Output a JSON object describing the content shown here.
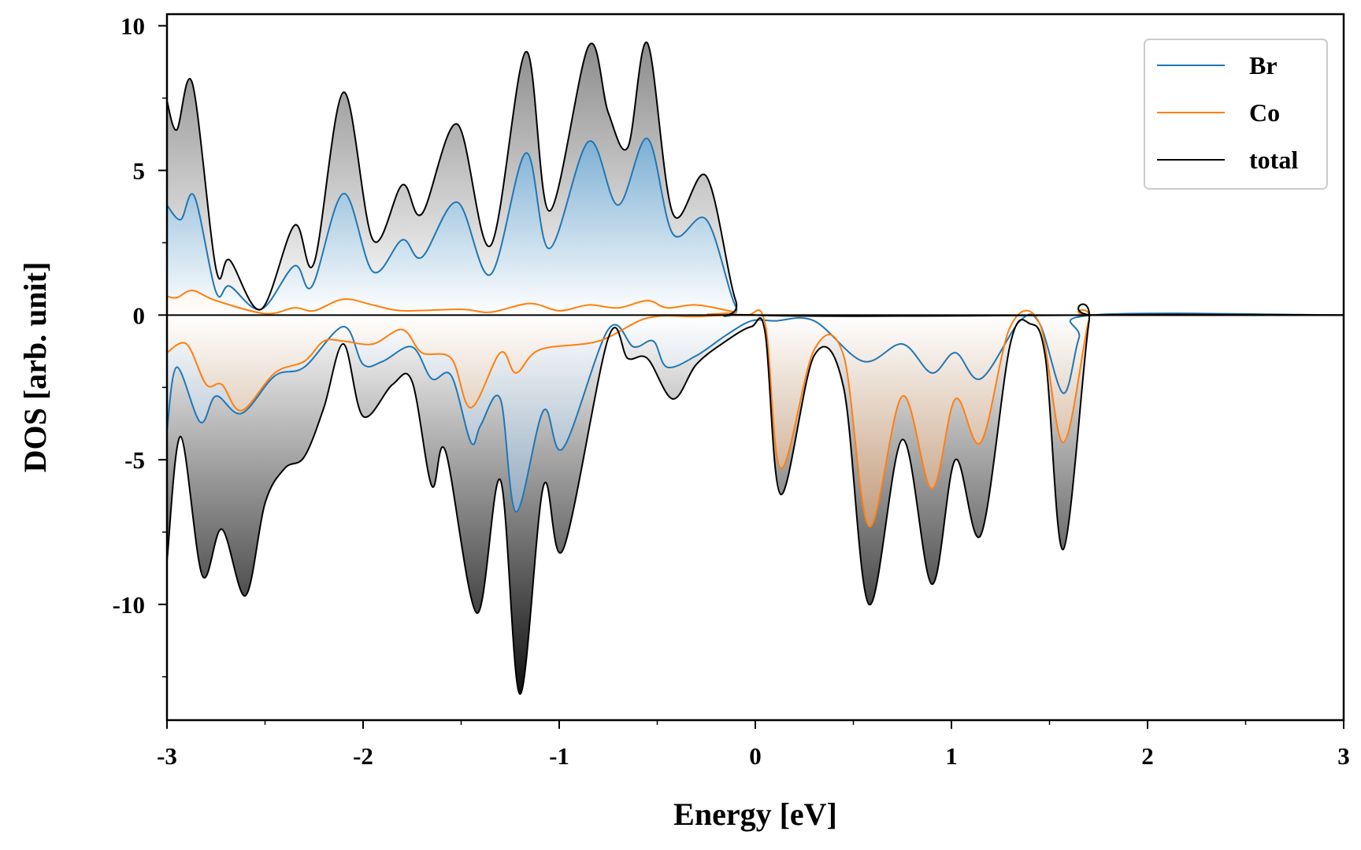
{
  "chart_data": {
    "type": "area",
    "title": "",
    "xlabel": "Energy [eV]",
    "ylabel": "DOS [arb. unit]",
    "xlim": [
      -3,
      3
    ],
    "ylim": [
      -14,
      10.4
    ],
    "x_ticks": [
      -3,
      -2,
      -1,
      0,
      1,
      2,
      3
    ],
    "x_tick_labels": [
      "-3",
      "-2",
      "-1",
      "0",
      "1",
      "2",
      "3"
    ],
    "y_ticks": [
      -10,
      -5,
      0,
      5,
      10
    ],
    "y_tick_labels": [
      "-10",
      "-5",
      "0",
      "5",
      "10"
    ],
    "legend_position": "top-right",
    "grid": false,
    "spin_channels": [
      "up",
      "down"
    ],
    "series": [
      {
        "name": "Br",
        "color": "#1f77b4",
        "up": [
          [
            -3.0,
            3.8
          ],
          [
            -2.93,
            3.3
          ],
          [
            -2.86,
            4.1
          ],
          [
            -2.75,
            0.8
          ],
          [
            -2.68,
            1.0
          ],
          [
            -2.52,
            0.2
          ],
          [
            -2.35,
            1.7
          ],
          [
            -2.26,
            1.0
          ],
          [
            -2.1,
            4.2
          ],
          [
            -1.95,
            1.5
          ],
          [
            -1.8,
            2.6
          ],
          [
            -1.7,
            2.0
          ],
          [
            -1.52,
            3.9
          ],
          [
            -1.35,
            1.4
          ],
          [
            -1.17,
            5.6
          ],
          [
            -1.05,
            2.3
          ],
          [
            -0.85,
            6.0
          ],
          [
            -0.7,
            3.8
          ],
          [
            -0.55,
            6.1
          ],
          [
            -0.42,
            2.8
          ],
          [
            -0.25,
            3.3
          ],
          [
            -0.1,
            0.3
          ],
          [
            0.0,
            0.0
          ],
          [
            1.8,
            0.0
          ],
          [
            3.0,
            0.0
          ]
        ],
        "down": [
          [
            -3.0,
            -4.0
          ],
          [
            -2.95,
            -1.8
          ],
          [
            -2.83,
            -3.7
          ],
          [
            -2.75,
            -2.8
          ],
          [
            -2.62,
            -3.4
          ],
          [
            -2.45,
            -2.1
          ],
          [
            -2.3,
            -1.8
          ],
          [
            -2.1,
            -0.4
          ],
          [
            -2.0,
            -1.7
          ],
          [
            -1.9,
            -1.6
          ],
          [
            -1.75,
            -1.1
          ],
          [
            -1.65,
            -2.2
          ],
          [
            -1.55,
            -2.1
          ],
          [
            -1.45,
            -4.4
          ],
          [
            -1.4,
            -3.8
          ],
          [
            -1.3,
            -2.9
          ],
          [
            -1.22,
            -6.8
          ],
          [
            -1.08,
            -3.3
          ],
          [
            -0.98,
            -4.6
          ],
          [
            -0.75,
            -0.5
          ],
          [
            -0.62,
            -1.1
          ],
          [
            -0.52,
            -0.9
          ],
          [
            -0.45,
            -1.8
          ],
          [
            -0.3,
            -1.4
          ],
          [
            -0.15,
            -0.7
          ],
          [
            -0.02,
            -0.2
          ],
          [
            0.1,
            -0.2
          ],
          [
            0.3,
            -0.2
          ],
          [
            0.55,
            -1.6
          ],
          [
            0.75,
            -1.0
          ],
          [
            0.9,
            -2.0
          ],
          [
            1.02,
            -1.3
          ],
          [
            1.15,
            -2.2
          ],
          [
            1.35,
            -0.2
          ],
          [
            1.45,
            -0.3
          ],
          [
            1.57,
            -2.7
          ],
          [
            1.65,
            -0.8
          ],
          [
            1.72,
            0.0
          ],
          [
            3.0,
            0.0
          ]
        ]
      },
      {
        "name": "Co",
        "color": "#ff7f0e",
        "up": [
          [
            -3.0,
            0.65
          ],
          [
            -2.95,
            0.6
          ],
          [
            -2.87,
            0.85
          ],
          [
            -2.75,
            0.5
          ],
          [
            -2.5,
            0.05
          ],
          [
            -2.35,
            0.25
          ],
          [
            -2.25,
            0.15
          ],
          [
            -2.1,
            0.55
          ],
          [
            -1.95,
            0.35
          ],
          [
            -1.8,
            0.15
          ],
          [
            -1.5,
            0.2
          ],
          [
            -1.35,
            0.1
          ],
          [
            -1.15,
            0.4
          ],
          [
            -1.0,
            0.15
          ],
          [
            -0.85,
            0.35
          ],
          [
            -0.7,
            0.25
          ],
          [
            -0.55,
            0.5
          ],
          [
            -0.45,
            0.25
          ],
          [
            -0.3,
            0.35
          ],
          [
            -0.1,
            0.1
          ],
          [
            0.0,
            0.0
          ],
          [
            3.0,
            0.0
          ]
        ],
        "down": [
          [
            -3.0,
            -1.3
          ],
          [
            -2.9,
            -1.0
          ],
          [
            -2.8,
            -2.4
          ],
          [
            -2.72,
            -2.4
          ],
          [
            -2.62,
            -3.3
          ],
          [
            -2.45,
            -2.0
          ],
          [
            -2.3,
            -1.6
          ],
          [
            -2.2,
            -0.9
          ],
          [
            -2.1,
            -0.9
          ],
          [
            -1.95,
            -1.0
          ],
          [
            -1.8,
            -0.5
          ],
          [
            -1.7,
            -1.3
          ],
          [
            -1.55,
            -1.5
          ],
          [
            -1.45,
            -3.2
          ],
          [
            -1.3,
            -1.3
          ],
          [
            -1.22,
            -2.0
          ],
          [
            -1.1,
            -1.2
          ],
          [
            -0.8,
            -0.9
          ],
          [
            -0.55,
            -0.1
          ],
          [
            -0.3,
            -0.05
          ],
          [
            -0.05,
            0.0
          ],
          [
            0.05,
            -0.3
          ],
          [
            0.13,
            -5.3
          ],
          [
            0.3,
            -1.2
          ],
          [
            0.45,
            -1.4
          ],
          [
            0.58,
            -7.3
          ],
          [
            0.75,
            -2.8
          ],
          [
            0.9,
            -6.0
          ],
          [
            1.02,
            -2.9
          ],
          [
            1.15,
            -4.4
          ],
          [
            1.3,
            -0.4
          ],
          [
            1.45,
            -0.3
          ],
          [
            1.57,
            -4.4
          ],
          [
            1.7,
            -0.2
          ],
          [
            1.75,
            0.0
          ],
          [
            3.0,
            0.0
          ]
        ]
      },
      {
        "name": "total",
        "color": "#000000",
        "up": [
          [
            -3.0,
            7.4
          ],
          [
            -2.95,
            6.4
          ],
          [
            -2.87,
            8.0
          ],
          [
            -2.75,
            1.6
          ],
          [
            -2.68,
            1.9
          ],
          [
            -2.52,
            0.2
          ],
          [
            -2.35,
            3.1
          ],
          [
            -2.25,
            1.8
          ],
          [
            -2.1,
            7.7
          ],
          [
            -1.95,
            2.6
          ],
          [
            -1.8,
            4.5
          ],
          [
            -1.7,
            3.5
          ],
          [
            -1.52,
            6.6
          ],
          [
            -1.35,
            2.4
          ],
          [
            -1.17,
            9.1
          ],
          [
            -1.05,
            3.6
          ],
          [
            -0.85,
            9.3
          ],
          [
            -0.75,
            7.0
          ],
          [
            -0.65,
            5.8
          ],
          [
            -0.55,
            9.4
          ],
          [
            -0.42,
            3.5
          ],
          [
            -0.25,
            4.8
          ],
          [
            -0.1,
            0.5
          ],
          [
            0.0,
            0.0
          ],
          [
            1.8,
            0.0
          ],
          [
            3.0,
            0.0
          ]
        ],
        "down": [
          [
            -3.0,
            -8.5
          ],
          [
            -2.93,
            -4.2
          ],
          [
            -2.82,
            -9.0
          ],
          [
            -2.72,
            -7.4
          ],
          [
            -2.6,
            -9.7
          ],
          [
            -2.5,
            -6.5
          ],
          [
            -2.4,
            -5.3
          ],
          [
            -2.3,
            -4.9
          ],
          [
            -2.2,
            -3.2
          ],
          [
            -2.1,
            -1.0
          ],
          [
            -2.0,
            -3.5
          ],
          [
            -1.85,
            -2.4
          ],
          [
            -1.75,
            -2.3
          ],
          [
            -1.65,
            -5.9
          ],
          [
            -1.58,
            -4.7
          ],
          [
            -1.42,
            -10.3
          ],
          [
            -1.3,
            -5.7
          ],
          [
            -1.2,
            -13.1
          ],
          [
            -1.08,
            -5.9
          ],
          [
            -0.98,
            -8.1
          ],
          [
            -0.75,
            -0.8
          ],
          [
            -0.65,
            -1.5
          ],
          [
            -0.55,
            -1.5
          ],
          [
            -0.42,
            -2.9
          ],
          [
            -0.3,
            -1.7
          ],
          [
            -0.15,
            -0.9
          ],
          [
            -0.02,
            -0.4
          ],
          [
            0.05,
            -0.6
          ],
          [
            0.13,
            -6.2
          ],
          [
            0.3,
            -1.4
          ],
          [
            0.45,
            -2.5
          ],
          [
            0.58,
            -10.0
          ],
          [
            0.75,
            -4.3
          ],
          [
            0.9,
            -9.3
          ],
          [
            1.02,
            -5.0
          ],
          [
            1.15,
            -7.6
          ],
          [
            1.3,
            -1.0
          ],
          [
            1.4,
            -0.3
          ],
          [
            1.48,
            -1.5
          ],
          [
            1.57,
            -8.1
          ],
          [
            1.7,
            -0.3
          ],
          [
            1.75,
            0.0
          ],
          [
            3.0,
            0.0
          ]
        ]
      }
    ]
  }
}
